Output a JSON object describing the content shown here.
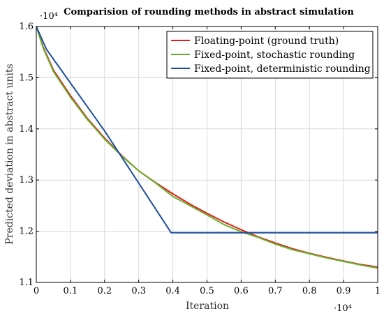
{
  "chart_data": {
    "type": "line",
    "title": "Comparision of rounding methods in abstract simulation",
    "xlabel": "Iteration",
    "ylabel": "Predicted deviation in abstract units",
    "x_scale_label": "·10⁴",
    "y_scale_label": "·10⁴",
    "xlim": [
      0,
      1
    ],
    "ylim": [
      1.1,
      1.6
    ],
    "x_ticks": [
      "0",
      "0.1",
      "0.2",
      "0.3",
      "0.4",
      "0.5",
      "0.6",
      "0.7",
      "0.8",
      "0.9",
      "1"
    ],
    "y_ticks": [
      "1.1",
      "1.2",
      "1.3",
      "1.4",
      "1.5",
      "1.6"
    ],
    "grid": true,
    "legend_position": "top-right",
    "series": [
      {
        "name": "Floating-point (ground truth)",
        "color": "#e41a1c",
        "x": [
          0,
          0.02,
          0.05,
          0.1,
          0.15,
          0.2,
          0.25,
          0.3,
          0.35,
          0.4,
          0.45,
          0.5,
          0.55,
          0.6,
          0.65,
          0.7,
          0.75,
          0.8,
          0.85,
          0.9,
          0.95,
          1.0
        ],
        "y": [
          1.6,
          1.56,
          1.515,
          1.465,
          1.42,
          1.382,
          1.348,
          1.318,
          1.295,
          1.273,
          1.253,
          1.235,
          1.218,
          1.203,
          1.189,
          1.177,
          1.166,
          1.157,
          1.149,
          1.142,
          1.135,
          1.13
        ]
      },
      {
        "name": "Fixed-point, stochastic rounding",
        "color": "#66b32e",
        "x": [
          0,
          0.02,
          0.05,
          0.1,
          0.15,
          0.2,
          0.25,
          0.3,
          0.35,
          0.4,
          0.45,
          0.5,
          0.55,
          0.6,
          0.65,
          0.7,
          0.75,
          0.8,
          0.85,
          0.9,
          0.95,
          1.0
        ],
        "y": [
          1.6,
          1.558,
          1.512,
          1.462,
          1.418,
          1.38,
          1.347,
          1.318,
          1.294,
          1.268,
          1.25,
          1.232,
          1.213,
          1.199,
          1.188,
          1.175,
          1.164,
          1.156,
          1.148,
          1.141,
          1.134,
          1.128
        ]
      },
      {
        "name": "Fixed-point, deterministic rounding",
        "color": "#1f4e9c",
        "x": [
          0,
          0.03,
          0.2,
          0.395,
          1.0
        ],
        "y": [
          1.6,
          1.555,
          1.396,
          1.197,
          1.197
        ]
      }
    ]
  }
}
